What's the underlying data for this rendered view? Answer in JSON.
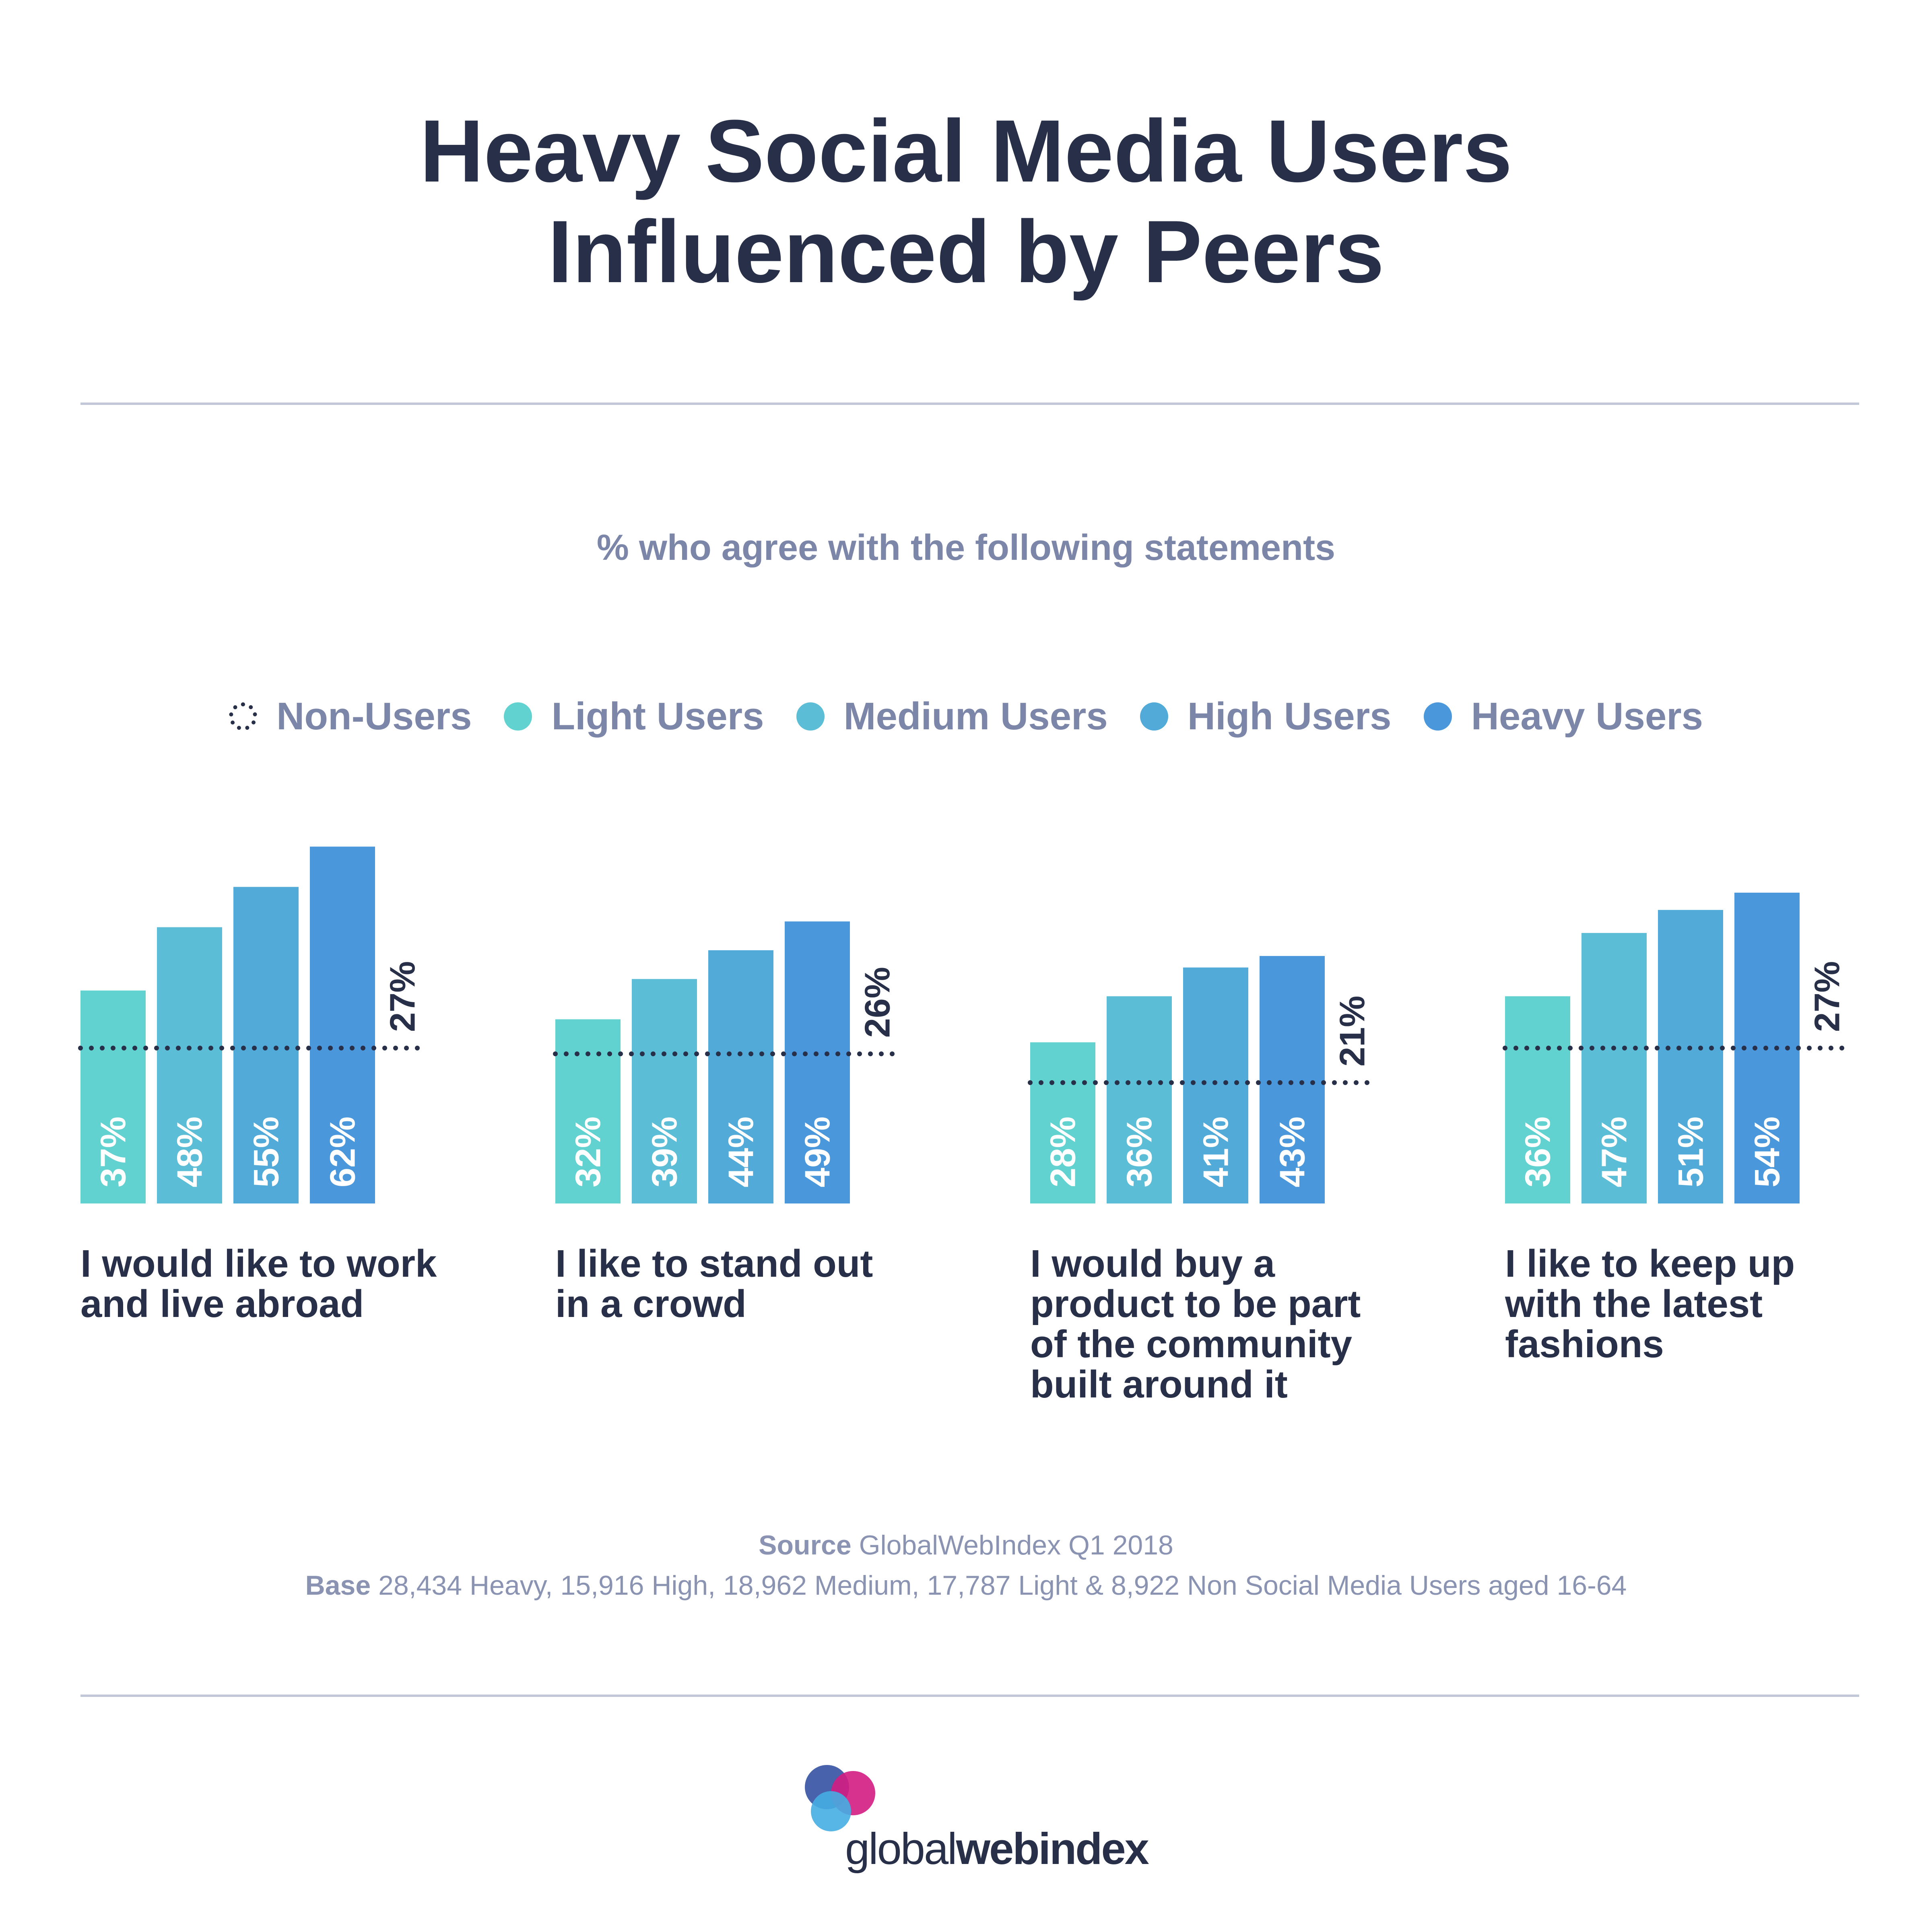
{
  "title_line1": "Heavy Social Media Users",
  "title_line2": "Influenced by Peers",
  "subtitle": "% who agree with the following statements",
  "legend": [
    {
      "label": "Non-Users",
      "color": "#283049",
      "style": "dotted"
    },
    {
      "label": "Light Users",
      "color": "#62d2d0",
      "style": "solid"
    },
    {
      "label": "Medium Users",
      "color": "#5bbdd6",
      "style": "solid"
    },
    {
      "label": "High Users",
      "color": "#52aad9",
      "style": "solid"
    },
    {
      "label": "Heavy Users",
      "color": "#4a97dc",
      "style": "solid"
    }
  ],
  "chart_data": {
    "type": "bar",
    "title": "Heavy Social Media Users Influenced by Peers",
    "subtitle": "% who agree with the following statements",
    "series": [
      {
        "name": "Light Users",
        "values": [
          37,
          32,
          28,
          36
        ]
      },
      {
        "name": "Medium Users",
        "values": [
          48,
          39,
          36,
          47
        ]
      },
      {
        "name": "High Users",
        "values": [
          55,
          44,
          41,
          51
        ]
      },
      {
        "name": "Heavy Users",
        "values": [
          62,
          49,
          43,
          54
        ]
      }
    ],
    "reference": {
      "name": "Non-Users",
      "values": [
        27,
        26,
        21,
        27
      ]
    },
    "groups": [
      {
        "statement": "I would like to work and live abroad",
        "light": "37%",
        "medium": "48%",
        "high": "55%",
        "heavy": "62%",
        "nonusers": "27%"
      },
      {
        "statement": "I like to stand out in a crowd",
        "light": "32%",
        "medium": "39%",
        "high": "44%",
        "heavy": "49%",
        "nonusers": "26%"
      },
      {
        "statement": "I would buy a product to be part of the community built around it",
        "light": "28%",
        "medium": "36%",
        "high": "41%",
        "heavy": "43%",
        "nonusers": "21%"
      },
      {
        "statement": "I like to keep up with the latest fashions",
        "light": "36%",
        "medium": "47%",
        "high": "51%",
        "heavy": "54%",
        "nonusers": "27%"
      }
    ],
    "ylim": [
      0,
      70
    ],
    "grid": false,
    "legend_position": "top"
  },
  "source": {
    "key": "Source",
    "text": "GlobalWebIndex Q1 2018"
  },
  "base": {
    "key": "Base",
    "text": "28,434 Heavy, 15,916 High, 18,962 Medium, 17,787 Light & 8,922 Non Social Media Users aged 16-64"
  },
  "logo": {
    "light": "global",
    "bold": "webindex"
  }
}
